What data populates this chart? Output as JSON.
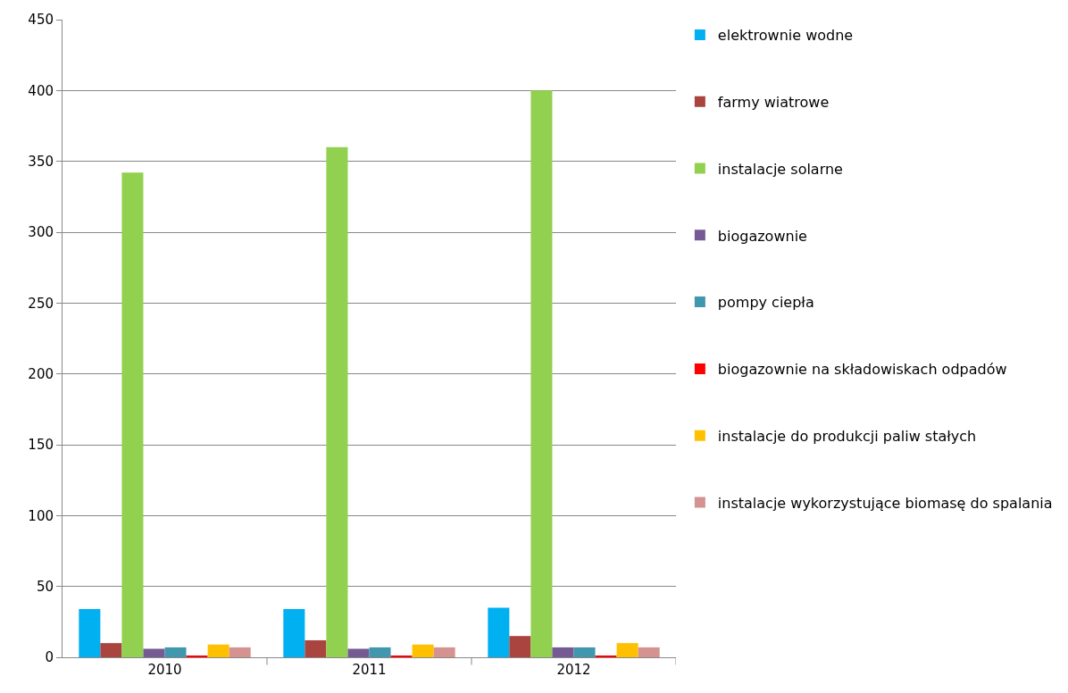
{
  "chart_data": {
    "type": "bar",
    "categories": [
      "2010",
      "2011",
      "2012"
    ],
    "series": [
      {
        "name": "elektrownie wodne",
        "color": "#00b0f0",
        "values": [
          34,
          34,
          35
        ]
      },
      {
        "name": "farmy wiatrowe",
        "color": "#a9443f",
        "values": [
          10,
          12,
          15
        ]
      },
      {
        "name": "instalacje solarne",
        "color": "#92d050",
        "values": [
          342,
          360,
          400
        ]
      },
      {
        "name": "biogazownie",
        "color": "#765a94",
        "values": [
          6,
          6,
          7
        ]
      },
      {
        "name": "pompy ciepła",
        "color": "#4197ae",
        "values": [
          7,
          7,
          7
        ]
      },
      {
        "name": "biogazownie na składowiskach odpadów",
        "color": "#ff0000",
        "values": [
          1,
          1,
          1
        ]
      },
      {
        "name": "instalacje do produkcji paliw stałych",
        "color": "#ffc000",
        "values": [
          9,
          9,
          10
        ]
      },
      {
        "name": "instalacje wykorzystujące biomasę do spalania",
        "color": "#d49290",
        "values": [
          7,
          7,
          7
        ]
      }
    ],
    "ylim": [
      0,
      450
    ],
    "yticks": [
      0,
      50,
      100,
      150,
      200,
      250,
      300,
      350,
      400,
      450
    ],
    "grid": "y",
    "legend": "right"
  }
}
